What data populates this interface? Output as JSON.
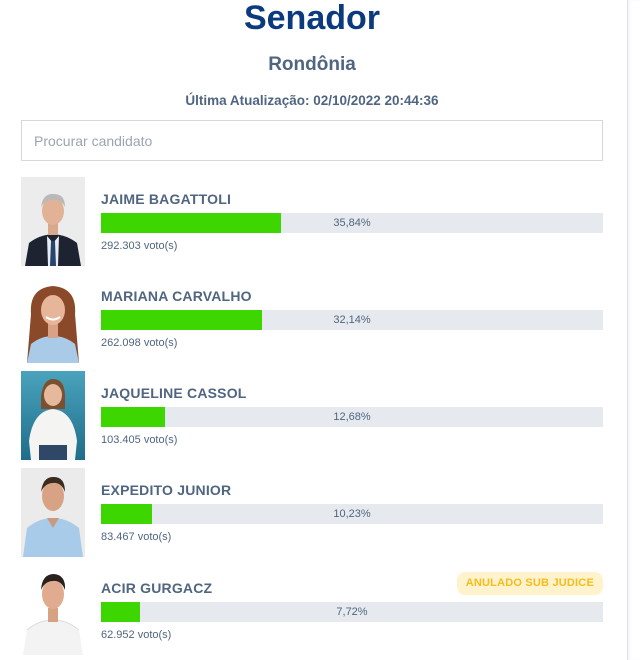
{
  "header": {
    "title": "Senador",
    "region": "Rondônia",
    "last_update": "Última Atualização: 02/10/2022 20:44:36"
  },
  "search": {
    "placeholder": "Procurar candidato",
    "value": ""
  },
  "colors": {
    "title": "#0b3a7e",
    "bar_fill": "#3dd600",
    "bar_track": "#e6eaee",
    "badge_bg": "#fff3cd",
    "badge_text": "#f5bc1c",
    "text": "#4f6580"
  },
  "candidates": [
    {
      "name": "JAIME BAGATTOLI",
      "percent": "35,84%",
      "percent_value": 35.84,
      "votes": "292.303 voto(s)",
      "badge": null,
      "photo": "candidate-photo"
    },
    {
      "name": "MARIANA CARVALHO",
      "percent": "32,14%",
      "percent_value": 32.14,
      "votes": "262.098 voto(s)",
      "badge": null,
      "photo": "candidate-photo"
    },
    {
      "name": "JAQUELINE CASSOL",
      "percent": "12,68%",
      "percent_value": 12.68,
      "votes": "103.405 voto(s)",
      "badge": null,
      "photo": "candidate-photo"
    },
    {
      "name": "EXPEDITO JUNIOR",
      "percent": "10,23%",
      "percent_value": 10.23,
      "votes": "83.467 voto(s)",
      "badge": null,
      "photo": "candidate-photo"
    },
    {
      "name": "ACIR GURGACZ",
      "percent": "7,72%",
      "percent_value": 7.72,
      "votes": "62.952 voto(s)",
      "badge": "ANULADO SUB JUDICE",
      "photo": "candidate-photo"
    }
  ]
}
